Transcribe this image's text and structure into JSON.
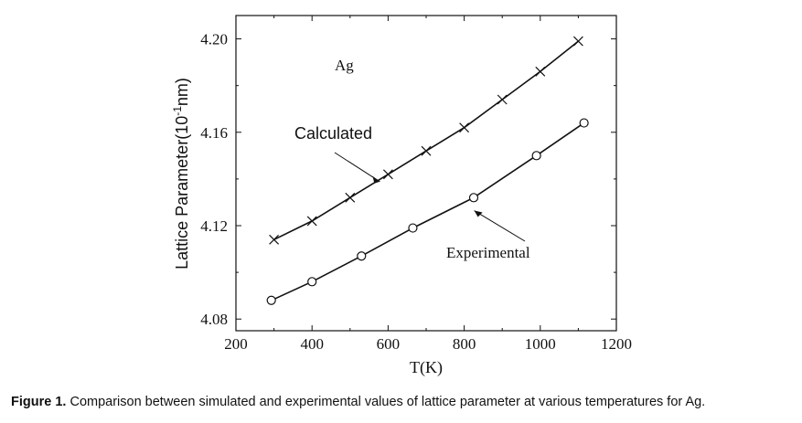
{
  "chart_data": {
    "type": "line",
    "xlabel": "T(K)",
    "ylabel_main": "Lattice Parameter(10",
    "ylabel_sup": "-1",
    "ylabel_unit": "nm)",
    "xlim": [
      200,
      1200
    ],
    "ylim": [
      4.075,
      4.21
    ],
    "xticks": [
      200,
      400,
      600,
      800,
      1000,
      1200
    ],
    "xtick_labels": [
      "200",
      "400",
      "600",
      "800",
      "1000",
      "1200"
    ],
    "yticks": [
      4.08,
      4.12,
      4.16,
      4.2
    ],
    "ytick_labels": [
      "4.08",
      "4.12",
      "4.16",
      "4.20"
    ],
    "series": [
      {
        "name": "Calculated",
        "marker": "x",
        "x": [
          300,
          400,
          500,
          600,
          700,
          800,
          900,
          1000,
          1100
        ],
        "y": [
          4.114,
          4.122,
          4.132,
          4.142,
          4.152,
          4.162,
          4.174,
          4.186,
          4.199
        ]
      },
      {
        "name": "Experimental",
        "marker": "circle",
        "x": [
          293,
          400,
          530,
          665,
          825,
          990,
          1115
        ],
        "y": [
          4.088,
          4.096,
          4.107,
          4.119,
          4.132,
          4.15,
          4.164
        ]
      }
    ],
    "annotations": [
      {
        "text": "Ag",
        "style": "serif"
      },
      {
        "text": "Calculated",
        "style": "sans",
        "arrow_to": {
          "x": 612,
          "y": 4.142
        }
      },
      {
        "text": "Experimental",
        "style": "serif",
        "arrow_to": {
          "x": 812,
          "y": 4.128
        }
      }
    ]
  },
  "caption": {
    "label": "Figure 1.",
    "text": " Comparison between simulated and experimental values of lattice parameter at various temperatures for Ag."
  }
}
